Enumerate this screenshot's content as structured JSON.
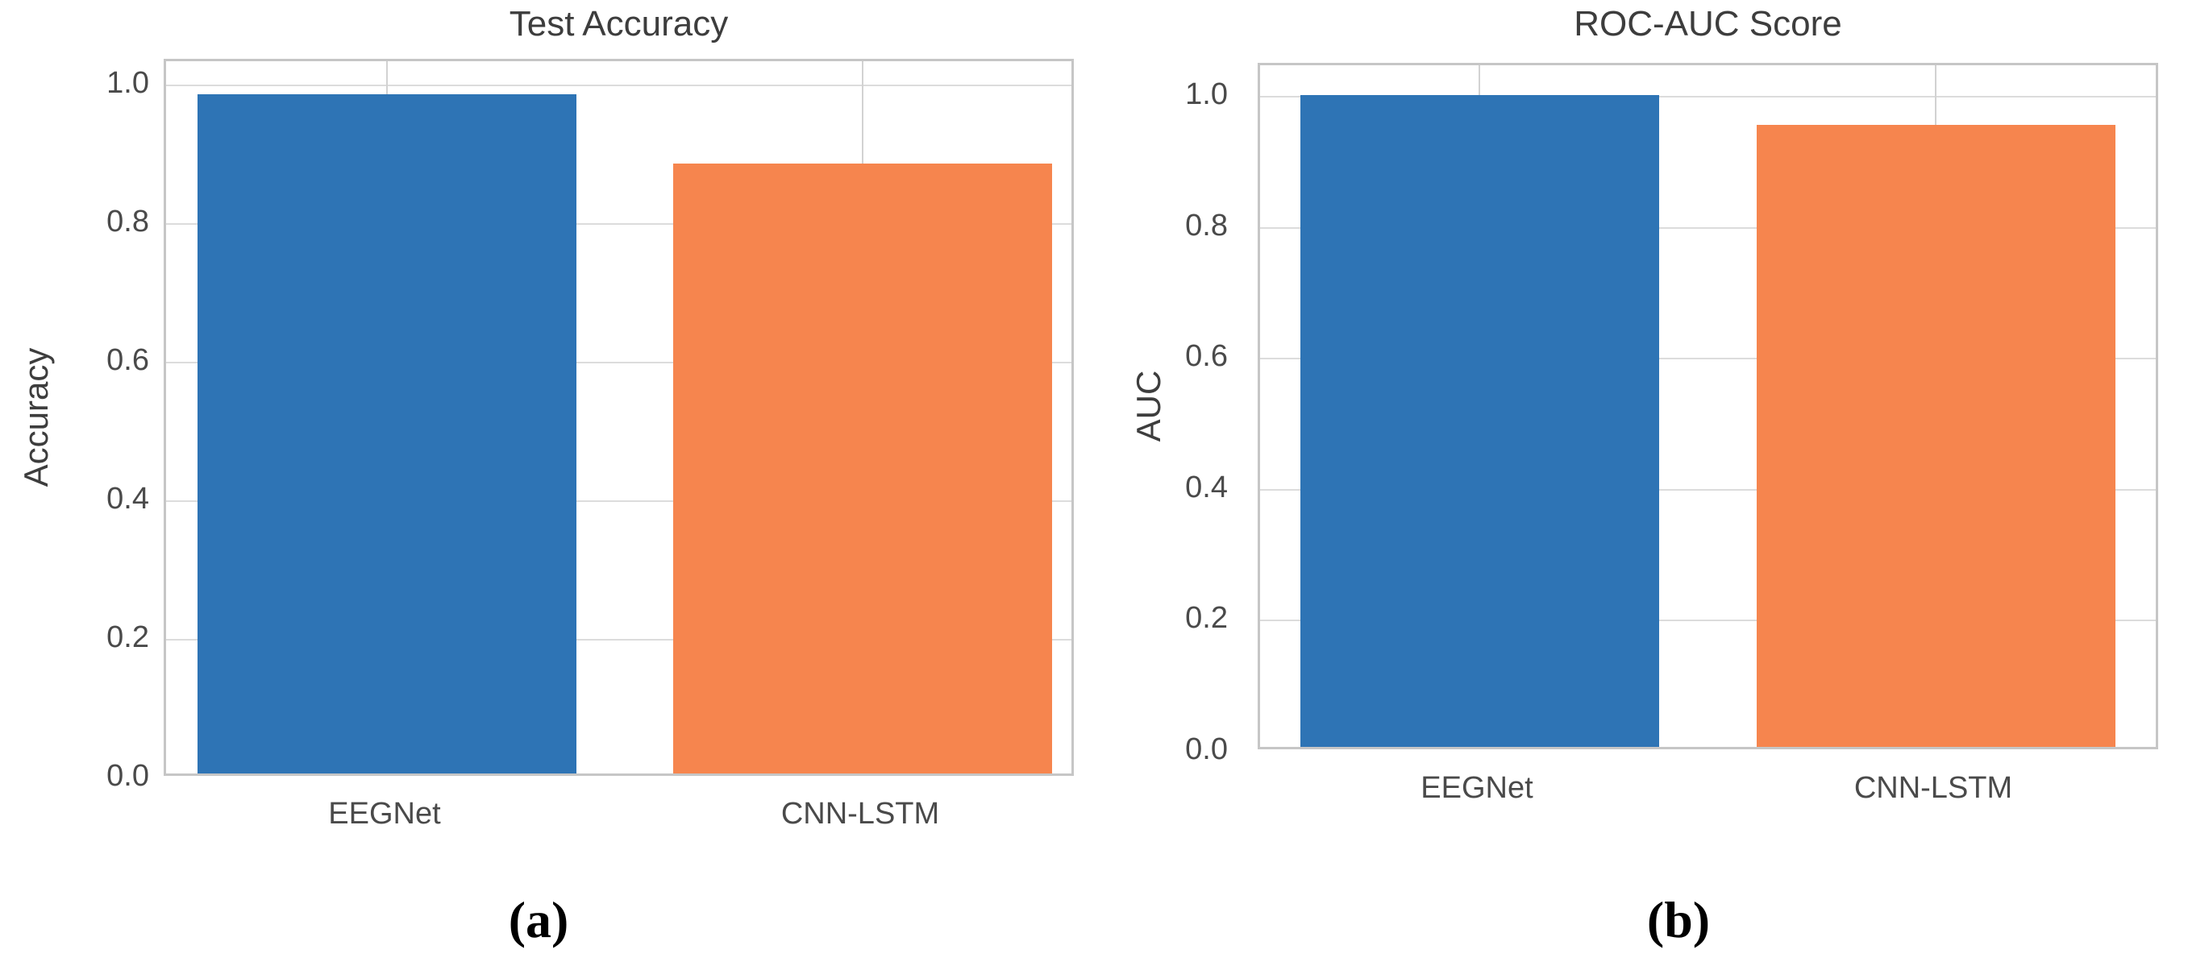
{
  "figure": {
    "description": "Two-panel bar chart comparing EEGNet and CNN-LSTM models",
    "background": "#ffffff"
  },
  "chart_data": [
    {
      "type": "bar",
      "title": "Test Accuracy",
      "xlabel": "",
      "ylabel": "Accuracy",
      "panel_label": "(a)",
      "categories": [
        "EEGNet",
        "CNN-LSTM"
      ],
      "values": [
        0.98,
        0.88
      ],
      "bar_colors": [
        "#2e74b5",
        "#f6854e"
      ],
      "yticks": [
        0.0,
        0.2,
        0.4,
        0.6,
        0.8,
        1.0
      ],
      "ylim": [
        0,
        1.035
      ],
      "grid": true,
      "legend": "none"
    },
    {
      "type": "bar",
      "title": "ROC-AUC Score",
      "xlabel": "",
      "ylabel": "AUC",
      "panel_label": "(b)",
      "categories": [
        "EEGNet",
        "CNN-LSTM"
      ],
      "values": [
        0.995,
        0.95
      ],
      "bar_colors": [
        "#2e74b5",
        "#f6854e"
      ],
      "yticks": [
        0.0,
        0.2,
        0.4,
        0.6,
        0.8,
        1.0
      ],
      "ylim": [
        0,
        1.05
      ],
      "grid": true,
      "legend": "none"
    }
  ]
}
